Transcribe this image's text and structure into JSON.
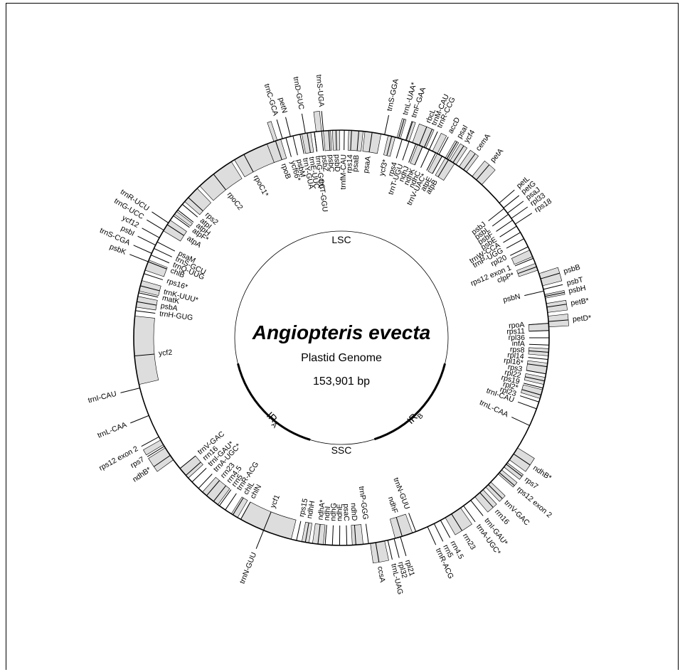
{
  "map": {
    "title": "Angiopteris evecta",
    "subtitle": "Plastid Genome",
    "size": "153,901 bp",
    "regions": [
      "LSC",
      "IRA",
      "SSC",
      "IRB"
    ],
    "region_labels": {
      "lsc": "LSC",
      "ssc": "SSC",
      "ira_main": "IR",
      "ira_sub": "A",
      "irb_main": "IR",
      "irb_sub": "B"
    },
    "colors": {
      "gene_fill": "#dddddd",
      "stroke": "#000000",
      "background": "#ffffff"
    }
  },
  "genes": [
    {
      "name": "rbcL",
      "a": 22,
      "side": "out"
    },
    {
      "name": "trnR-CCG",
      "a": 25,
      "side": "out"
    },
    {
      "name": "accD",
      "a": 28,
      "side": "out"
    },
    {
      "name": "psaI",
      "a": 30.5,
      "side": "out"
    },
    {
      "name": "ycf4",
      "a": 32.5,
      "side": "out"
    },
    {
      "name": "cemA",
      "a": 36,
      "side": "out"
    },
    {
      "name": "petA",
      "a": 40.5,
      "side": "out"
    },
    {
      "name": "petL",
      "a": 49.5,
      "side": "out"
    },
    {
      "name": "petG",
      "a": 51.3,
      "side": "out"
    },
    {
      "name": "psaJ",
      "a": 53.1,
      "side": "out"
    },
    {
      "name": "rpl33",
      "a": 54.9,
      "side": "out"
    },
    {
      "name": "rps18",
      "a": 56.8,
      "side": "out"
    },
    {
      "name": "psbB",
      "a": 73.5,
      "side": "out"
    },
    {
      "name": "psbT",
      "a": 76.5,
      "side": "out"
    },
    {
      "name": "psbH",
      "a": 78.5,
      "side": "out"
    },
    {
      "name": "petB*",
      "a": 81.5,
      "side": "out"
    },
    {
      "name": "petD*",
      "a": 85.5,
      "side": "out"
    },
    {
      "name": "ndhB*",
      "a": 124,
      "side": "out"
    },
    {
      "name": "rps7",
      "a": 127.5,
      "side": "out"
    },
    {
      "name": "rps12 exon 2",
      "a": 130.5,
      "side": "out"
    },
    {
      "name": "trnV-GAC",
      "a": 135,
      "side": "out"
    },
    {
      "name": "rrn16",
      "a": 138.2,
      "side": "out"
    },
    {
      "name": "trnI-GAU*",
      "a": 141.5,
      "side": "out"
    },
    {
      "name": "trnA-UGC*",
      "a": 144,
      "side": "out"
    },
    {
      "name": "rrn23",
      "a": 148,
      "side": "out"
    },
    {
      "name": "rrn4.5",
      "a": 151.5,
      "side": "out"
    },
    {
      "name": "rrn5",
      "a": 153.5,
      "side": "out"
    },
    {
      "name": "trnR-ACG",
      "a": 155.5,
      "side": "out"
    },
    {
      "name": "rpl21",
      "a": 163.5,
      "side": "out"
    },
    {
      "name": "rpl32",
      "a": 165.3,
      "side": "out"
    },
    {
      "name": "trnL-UAG",
      "a": 167.1,
      "side": "out"
    },
    {
      "name": "ccsA",
      "a": 170.5,
      "side": "out"
    },
    {
      "name": "trnN-GUU",
      "a": 202,
      "side": "out"
    },
    {
      "name": "ndhB*",
      "a": 235.5,
      "side": "out"
    },
    {
      "name": "rps7",
      "a": 238.5,
      "side": "out"
    },
    {
      "name": "rps12 exon 2",
      "a": 241.5,
      "side": "out"
    },
    {
      "name": "trnI-CAU",
      "a": 256,
      "side": "out"
    },
    {
      "name": "trnL-CAA",
      "a": 248,
      "side": "out"
    },
    {
      "name": "trnS-CGA",
      "a": 294,
      "side": "out"
    },
    {
      "name": "psbK",
      "a": 291.5,
      "side": "out"
    },
    {
      "name": "psbI",
      "a": 296.5,
      "side": "out"
    },
    {
      "name": "ycf12",
      "a": 298.8,
      "side": "out"
    },
    {
      "name": "trnG-UCC",
      "a": 301.2,
      "side": "out"
    },
    {
      "name": "trnR-UCU",
      "a": 303.6,
      "side": "out"
    },
    {
      "name": "trnC-GCA",
      "a": 343.5,
      "side": "out"
    },
    {
      "name": "petN",
      "a": 345.8,
      "side": "out"
    },
    {
      "name": "trnD-GUC",
      "a": 350,
      "side": "out"
    },
    {
      "name": "trnS-UGA",
      "a": 355,
      "side": "out"
    },
    {
      "name": "trnS-GGA",
      "a": 12,
      "side": "out"
    },
    {
      "name": "trnL-UAA*",
      "a": 16,
      "side": "out"
    },
    {
      "name": "trnF-GAA",
      "a": 18.2,
      "side": "out"
    },
    {
      "name": "trnM-CAU",
      "a": 23.5,
      "side": "out"
    },
    {
      "name": "rpoB",
      "a": 341.5,
      "side": "in"
    },
    {
      "name": "ycf66*",
      "a": 344.5,
      "side": "in"
    },
    {
      "name": "psbM",
      "a": 346.5,
      "side": "in"
    },
    {
      "name": "trnY-GUA",
      "a": 348.5,
      "side": "in"
    },
    {
      "name": "trnE-UUC",
      "a": 350.5,
      "side": "in"
    },
    {
      "name": "trnG-GCC",
      "a": 352.5,
      "side": "in"
    },
    {
      "name": "psbZ",
      "a": 354.5,
      "side": "in"
    },
    {
      "name": "psbC",
      "a": 356.5,
      "side": "in"
    },
    {
      "name": "psbD",
      "a": 358.5,
      "side": "in"
    },
    {
      "name": "trnT-GGU",
      "a": 352.5,
      "side": "in2"
    },
    {
      "name": "trnfM-CAU",
      "a": 0.8,
      "side": "in"
    },
    {
      "name": "rps14",
      "a": 2.8,
      "side": "in"
    },
    {
      "name": "psaB",
      "a": 4.8,
      "side": "in"
    },
    {
      "name": "psaA",
      "a": 8.5,
      "side": "in"
    },
    {
      "name": "ycf3*",
      "a": 14,
      "side": "in"
    },
    {
      "name": "rps4",
      "a": 17,
      "side": "in"
    },
    {
      "name": "trnT-UGU",
      "a": 19,
      "side": "in"
    },
    {
      "name": "ndhJ",
      "a": 21,
      "side": "in"
    },
    {
      "name": "ndhK",
      "a": 23,
      "side": "in"
    },
    {
      "name": "ndhC",
      "a": 25,
      "side": "in"
    },
    {
      "name": "trnV-UAC*",
      "a": 27,
      "side": "in"
    },
    {
      "name": "atpE",
      "a": 29,
      "side": "in"
    },
    {
      "name": "atpB",
      "a": 31,
      "side": "in"
    },
    {
      "name": "psbJ",
      "a": 51.5,
      "side": "in"
    },
    {
      "name": "psbL",
      "a": 53.5,
      "side": "in"
    },
    {
      "name": "psbF",
      "a": 55.5,
      "side": "in"
    },
    {
      "name": "psbE",
      "a": 57.5,
      "side": "in"
    },
    {
      "name": "trnW-CCA",
      "a": 59.5,
      "side": "in"
    },
    {
      "name": "trnP-UGG",
      "a": 61.5,
      "side": "in"
    },
    {
      "name": "rpl20",
      "a": 64,
      "side": "in"
    },
    {
      "name": "rps12 exon 1",
      "a": 67.5,
      "side": "in"
    },
    {
      "name": "clpP*",
      "a": 70,
      "side": "in"
    },
    {
      "name": "psbN",
      "a": 77,
      "side": "in"
    },
    {
      "name": "rpoA",
      "a": 86,
      "side": "in"
    },
    {
      "name": "rps11",
      "a": 88,
      "side": "in"
    },
    {
      "name": "rpl36",
      "a": 90,
      "side": "in"
    },
    {
      "name": "infA",
      "a": 92,
      "side": "in"
    },
    {
      "name": "rps8",
      "a": 94,
      "side": "in"
    },
    {
      "name": "rpl14",
      "a": 96,
      "side": "in"
    },
    {
      "name": "rpl16*",
      "a": 98,
      "side": "in"
    },
    {
      "name": "rps3",
      "a": 100,
      "side": "in"
    },
    {
      "name": "rpl22",
      "a": 102,
      "side": "in"
    },
    {
      "name": "rps19",
      "a": 104,
      "side": "in"
    },
    {
      "name": "rpl2*",
      "a": 106,
      "side": "in"
    },
    {
      "name": "rpl23",
      "a": 108,
      "side": "in"
    },
    {
      "name": "trnI-CAU",
      "a": 110,
      "side": "in"
    },
    {
      "name": "trnL-CAA",
      "a": 115,
      "side": "in"
    },
    {
      "name": "trnN-GUU",
      "a": 159,
      "side": "in"
    },
    {
      "name": "ndhF",
      "a": 163,
      "side": "in"
    },
    {
      "name": "trnP-GGG",
      "a": 172.5,
      "side": "in"
    },
    {
      "name": "ndhD",
      "a": 176,
      "side": "in"
    },
    {
      "name": "psaC",
      "a": 178.5,
      "side": "in"
    },
    {
      "name": "ndhE",
      "a": 180.5,
      "side": "in"
    },
    {
      "name": "ndhG",
      "a": 182.5,
      "side": "in"
    },
    {
      "name": "ndhI",
      "a": 184.5,
      "side": "in"
    },
    {
      "name": "ndhA*",
      "a": 186.5,
      "side": "in"
    },
    {
      "name": "ndhH",
      "a": 190,
      "side": "in"
    },
    {
      "name": "rps15",
      "a": 192.5,
      "side": "in"
    },
    {
      "name": "ycf1",
      "a": 202,
      "side": "in"
    },
    {
      "name": "chlN",
      "a": 209,
      "side": "in"
    },
    {
      "name": "chlL",
      "a": 211.5,
      "side": "in"
    },
    {
      "name": "trnR-ACG",
      "a": 214,
      "side": "in"
    },
    {
      "name": "rrn5",
      "a": 216,
      "side": "in"
    },
    {
      "name": "rrn4.5",
      "a": 218,
      "side": "in"
    },
    {
      "name": "rrn23",
      "a": 220.5,
      "side": "in"
    },
    {
      "name": "trnA-UGC*",
      "a": 223.5,
      "side": "in"
    },
    {
      "name": "trnI-GAU*",
      "a": 226,
      "side": "in"
    },
    {
      "name": "rrn16",
      "a": 228.5,
      "side": "in"
    },
    {
      "name": "trnV-GAC",
      "a": 231,
      "side": "in"
    },
    {
      "name": "ycf2",
      "a": 265,
      "side": "in"
    },
    {
      "name": "trnH-GUG",
      "a": 277.5,
      "side": "in"
    },
    {
      "name": "psbA",
      "a": 280,
      "side": "in"
    },
    {
      "name": "matK",
      "a": 282.5,
      "side": "in"
    },
    {
      "name": "trnK-UUU*",
      "a": 284.5,
      "side": "in"
    },
    {
      "name": "rps16*",
      "a": 288,
      "side": "in"
    },
    {
      "name": "chlB",
      "a": 291.5,
      "side": "in"
    },
    {
      "name": "trnQ-UUG",
      "a": 293.5,
      "side": "in"
    },
    {
      "name": "trnS-GCU",
      "a": 295.5,
      "side": "in"
    },
    {
      "name": "psaM",
      "a": 297.5,
      "side": "in"
    },
    {
      "name": "atpA",
      "a": 303,
      "side": "in"
    },
    {
      "name": "atpF*",
      "a": 306,
      "side": "in"
    },
    {
      "name": "atpH",
      "a": 308,
      "side": "in"
    },
    {
      "name": "atpI",
      "a": 310,
      "side": "in"
    },
    {
      "name": "rps2",
      "a": 312.5,
      "side": "in"
    },
    {
      "name": "rpoC2",
      "a": 322,
      "side": "in"
    },
    {
      "name": "rpoC1*",
      "a": 332,
      "side": "in"
    }
  ],
  "blocks": [
    {
      "a0": 20,
      "a1": 24,
      "side": "out"
    },
    {
      "a0": 26,
      "a1": 27.5,
      "side": "out"
    },
    {
      "a0": 30,
      "a1": 31,
      "side": "out"
    },
    {
      "a0": 31.5,
      "a1": 33.5,
      "side": "out"
    },
    {
      "a0": 34.5,
      "a1": 37,
      "side": "out"
    },
    {
      "a0": 39,
      "a1": 42.5,
      "side": "out"
    },
    {
      "a0": 72,
      "a1": 75.5,
      "side": "out"
    },
    {
      "a0": 78,
      "a1": 79,
      "side": "out"
    },
    {
      "a0": 80.5,
      "a1": 83,
      "side": "out"
    },
    {
      "a0": 84,
      "a1": 87,
      "side": "out"
    },
    {
      "a0": 122,
      "a1": 126,
      "side": "out"
    },
    {
      "a0": 127,
      "a1": 128.5,
      "side": "out"
    },
    {
      "a0": 129.5,
      "a1": 131,
      "side": "out"
    },
    {
      "a0": 134,
      "a1": 136,
      "side": "out"
    },
    {
      "a0": 137,
      "a1": 140,
      "side": "out"
    },
    {
      "a0": 145,
      "a1": 150,
      "side": "out"
    },
    {
      "a0": 168,
      "a1": 172,
      "side": "out"
    },
    {
      "a0": 234,
      "a1": 238,
      "side": "out"
    },
    {
      "a0": 239,
      "a1": 240.5,
      "side": "out"
    },
    {
      "a0": 341,
      "a1": 342,
      "side": "out"
    },
    {
      "a0": 353,
      "a1": 354.5,
      "side": "out"
    },
    {
      "a0": 15.5,
      "a1": 16.5,
      "side": "out"
    },
    {
      "a0": 18,
      "a1": 19,
      "side": "out"
    },
    {
      "a0": 339,
      "a1": 343,
      "side": "in"
    },
    {
      "a0": 349,
      "a1": 351.5,
      "side": "in"
    },
    {
      "a0": 355,
      "a1": 357,
      "side": "in"
    },
    {
      "a0": 357.5,
      "a1": 359.5,
      "side": "in"
    },
    {
      "a0": 2,
      "a1": 6,
      "side": "in"
    },
    {
      "a0": 6.5,
      "a1": 11,
      "side": "in"
    },
    {
      "a0": 13,
      "a1": 15,
      "side": "in"
    },
    {
      "a0": 21.5,
      "a1": 23,
      "side": "in"
    },
    {
      "a0": 27.5,
      "a1": 29,
      "side": "in"
    },
    {
      "a0": 30,
      "a1": 33,
      "side": "in"
    },
    {
      "a0": 65,
      "a1": 67,
      "side": "in"
    },
    {
      "a0": 69,
      "a1": 71,
      "side": "in"
    },
    {
      "a0": 86,
      "a1": 88,
      "side": "in"
    },
    {
      "a0": 93,
      "a1": 95,
      "side": "in"
    },
    {
      "a0": 97,
      "a1": 100,
      "side": "in"
    },
    {
      "a0": 101,
      "a1": 103,
      "side": "in"
    },
    {
      "a0": 104.5,
      "a1": 107,
      "side": "in"
    },
    {
      "a0": 160,
      "a1": 165,
      "side": "in"
    },
    {
      "a0": 174,
      "a1": 177,
      "side": "in"
    },
    {
      "a0": 185,
      "a1": 188,
      "side": "in"
    },
    {
      "a0": 189,
      "a1": 191,
      "side": "in"
    },
    {
      "a0": 194,
      "a1": 209,
      "side": "in"
    },
    {
      "a0": 210,
      "a1": 212,
      "side": "in"
    },
    {
      "a0": 216.5,
      "a1": 222,
      "side": "in"
    },
    {
      "a0": 227.5,
      "a1": 231,
      "side": "in"
    },
    {
      "a0": 257,
      "a1": 276,
      "side": "in"
    },
    {
      "a0": 278.5,
      "a1": 281.5,
      "side": "in"
    },
    {
      "a0": 283,
      "a1": 286,
      "side": "in"
    },
    {
      "a0": 289,
      "a1": 292,
      "side": "in"
    },
    {
      "a0": 301,
      "a1": 304.5,
      "side": "in"
    },
    {
      "a0": 306.5,
      "a1": 307.5,
      "side": "in"
    },
    {
      "a0": 311,
      "a1": 316,
      "side": "in"
    },
    {
      "a0": 317,
      "a1": 328,
      "side": "in"
    },
    {
      "a0": 329,
      "a1": 339,
      "side": "in"
    }
  ]
}
